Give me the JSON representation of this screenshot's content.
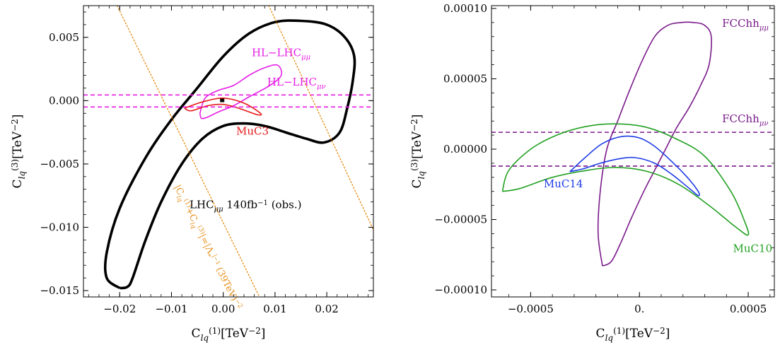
{
  "chart_data": [
    {
      "type": "line",
      "panel": "left",
      "xlabel": {
        "base": "C",
        "sub": "lq",
        "sup": "(1)",
        "unit": "[TeV",
        "unit_sup": "−2",
        "unit_end": "]"
      },
      "ylabel": {
        "base": "C",
        "sub": "lq",
        "sup": "(3)",
        "unit": "[TeV",
        "unit_sup": "−2",
        "unit_end": "]"
      },
      "xlim": [
        -0.027,
        0.029
      ],
      "ylim": [
        -0.0155,
        0.0075
      ],
      "xticks": [
        -0.02,
        -0.01,
        0.0,
        0.01,
        0.02
      ],
      "xtick_labels": [
        "−0.02",
        "−0.01",
        "0.00",
        "0.01",
        "0.02"
      ],
      "yticks": [
        0.005,
        0.0,
        -0.005,
        -0.01,
        -0.015
      ],
      "ytick_labels": [
        "0.005",
        "0.000",
        "−0.005",
        "−0.010",
        "−0.015"
      ],
      "grid": false,
      "series": [
        {
          "name": "LHC μμ 140fb⁻¹ (obs.)",
          "color": "#000000",
          "style": "solid-thick",
          "points": [
            [
              -0.02,
              -0.0148
            ],
            [
              -0.0225,
              -0.014
            ],
            [
              -0.0225,
              -0.012
            ],
            [
              -0.02,
              -0.0085
            ],
            [
              -0.015,
              -0.0045
            ],
            [
              -0.01,
              -0.0015
            ],
            [
              -0.005,
              0.001
            ],
            [
              0.0,
              0.0035
            ],
            [
              0.005,
              0.0053
            ],
            [
              0.01,
              0.0062
            ],
            [
              0.015,
              0.0063
            ],
            [
              0.02,
              0.006
            ],
            [
              0.0235,
              0.005
            ],
            [
              0.0253,
              0.0035
            ],
            [
              0.025,
              0.0015
            ],
            [
              0.024,
              -0.0005
            ],
            [
              0.0225,
              -0.0025
            ],
            [
              0.0195,
              -0.0033
            ],
            [
              0.016,
              -0.003
            ],
            [
              0.012,
              -0.0025
            ],
            [
              0.008,
              -0.002
            ],
            [
              0.004,
              -0.0018
            ],
            [
              0.0,
              -0.002
            ],
            [
              -0.004,
              -0.003
            ],
            [
              -0.008,
              -0.005
            ],
            [
              -0.012,
              -0.008
            ],
            [
              -0.015,
              -0.011
            ],
            [
              -0.0175,
              -0.014
            ],
            [
              -0.0185,
              -0.0147
            ],
            [
              -0.02,
              -0.0148
            ]
          ],
          "label": {
            "text": "LHC",
            "sub": "μμ",
            "tail": " 140fb",
            "tail_sup": "−1",
            "end": " (obs.)",
            "x": -0.0065,
            "y": -0.0085,
            "color": "#000000"
          }
        },
        {
          "name": "HL-LHC μμ",
          "color": "#e61ee6",
          "style": "solid",
          "points": [
            [
              -0.0045,
              -0.001
            ],
            [
              -0.0035,
              0.0002
            ],
            [
              -0.001,
              0.0008
            ],
            [
              0.002,
              0.0012
            ],
            [
              0.005,
              0.002
            ],
            [
              0.008,
              0.0026
            ],
            [
              0.0105,
              0.0028
            ],
            [
              0.0112,
              0.002
            ],
            [
              0.009,
              0.0012
            ],
            [
              0.005,
              0.0003
            ],
            [
              0.002,
              -0.0004
            ],
            [
              -0.001,
              -0.0009
            ],
            [
              -0.003,
              -0.0013
            ],
            [
              -0.0042,
              -0.0014
            ],
            [
              -0.0045,
              -0.001
            ]
          ],
          "label": {
            "text": "HL−LHC",
            "sub": "μμ",
            "x": 0.0055,
            "y": 0.0035,
            "color": "#e61ee6"
          }
        },
        {
          "name": "MuC3",
          "color": "#e61a1a",
          "style": "solid",
          "points": [
            [
              -0.0075,
              -0.0006
            ],
            [
              -0.004,
              -0.0001
            ],
            [
              0.0,
              0.0002
            ],
            [
              0.004,
              -0.0002
            ],
            [
              0.0072,
              -0.001
            ],
            [
              0.0065,
              -0.0011
            ],
            [
              0.003,
              -0.0006
            ],
            [
              0.0,
              -0.0003
            ],
            [
              -0.003,
              -0.0004
            ],
            [
              -0.0062,
              -0.0008
            ],
            [
              -0.0075,
              -0.0006
            ]
          ],
          "label": {
            "text": "MuC3",
            "x": 0.0025,
            "y": -0.0027,
            "color": "#e61a1a"
          }
        },
        {
          "name": "HL-LHC μν",
          "color": "#e61ee6",
          "style": "dashed",
          "hlines": [
            0.00045,
            -0.0005
          ],
          "label": {
            "text": "HL−LHC",
            "sub": "μν",
            "x": 0.0085,
            "y": 0.0012,
            "color": "#e61ee6"
          }
        },
        {
          "name": "orange-dotted-bound",
          "color": "#e8901c",
          "style": "dotted",
          "lines": [
            [
              [
                -0.0205,
                0.0075
              ],
              [
                0.007,
                -0.0155
              ]
            ],
            [
              [
                0.0088,
                0.0075
              ],
              [
                0.029,
                -0.0102
              ]
            ]
          ],
          "label": {
            "text": "|C",
            "sub": "lq",
            "sup": "(1)",
            "tail": "+C",
            "tail_sub": "lq",
            "tail_sup": "(3)",
            "end": "|=|Λ",
            "end_sub": "*",
            "end_sup": "|",
            "end2": "⁻¹ (39TeV)",
            "end2_sup": "−2",
            "x": -0.0095,
            "y": -0.0068,
            "color": "#e8901c",
            "rotate": 63
          }
        }
      ],
      "extra_marks": [
        {
          "name": "center-point",
          "x": -0.0002,
          "y": 2e-05,
          "color": "#000000"
        }
      ]
    },
    {
      "type": "line",
      "panel": "right",
      "xlabel": {
        "base": "C",
        "sub": "lq",
        "sup": "(1)",
        "unit": "[TeV",
        "unit_sup": "−2",
        "unit_end": "]"
      },
      "ylabel": {
        "base": "C",
        "sub": "lq",
        "sup": "(3)",
        "unit": "[TeV",
        "unit_sup": "−2",
        "unit_end": "]"
      },
      "xlim": [
        -0.00068,
        0.00062
      ],
      "ylim": [
        -0.000105,
        0.000102
      ],
      "xticks": [
        -0.0005,
        0.0,
        0.0005
      ],
      "xtick_labels": [
        "−0.0005",
        "0.",
        "0.0005"
      ],
      "yticks": [
        0.0001,
        5e-05,
        0.0,
        -5e-05,
        -0.0001
      ],
      "ytick_labels": [
        "0.00010",
        "0.00005",
        "0.00000",
        "−0.00005",
        "−0.00010"
      ],
      "grid": false,
      "series": [
        {
          "name": "FCChh μμ",
          "color": "#7a1a8a",
          "style": "solid",
          "points": [
            [
              -0.00017,
              -8.3e-05
            ],
            [
              -0.00019,
              -6e-05
            ],
            [
              -0.00018,
              -3e-05
            ],
            [
              -0.00015,
              0.0
            ],
            [
              -0.0001,
              2e-05
            ],
            [
              -5e-05,
              4e-05
            ],
            [
              1e-05,
              6.2e-05
            ],
            [
              7e-05,
              8e-05
            ],
            [
              0.00013,
              8.8e-05
            ],
            [
              0.00019,
              9e-05
            ],
            [
              0.00025,
              9e-05
            ],
            [
              0.0003,
              8.8e-05
            ],
            [
              0.00033,
              8e-05
            ],
            [
              0.00032,
              6e-05
            ],
            [
              0.00028,
              4.5e-05
            ],
            [
              0.00023,
              3e-05
            ],
            [
              0.00017,
              1.5e-05
            ],
            [
              0.00012,
              0.0
            ],
            [
              7e-05,
              -1.5e-05
            ],
            [
              2e-05,
              -3e-05
            ],
            [
              -4e-05,
              -5e-05
            ],
            [
              -9e-05,
              -6.8e-05
            ],
            [
              -0.00013,
              -8e-05
            ],
            [
              -0.00017,
              -8.3e-05
            ]
          ],
          "label": {
            "text": "FCChh",
            "sub": "μμ",
            "x": 0.00038,
            "y": 8.7e-05,
            "color": "#7a1a8a"
          }
        },
        {
          "name": "FCChh μν",
          "color": "#7a1a8a",
          "style": "dashed",
          "hlines": [
            1.2e-05,
            -1.2e-05
          ],
          "label": {
            "text": "FCChh",
            "sub": "μν",
            "x": 0.00038,
            "y": 1.9e-05,
            "color": "#7a1a8a"
          }
        },
        {
          "name": "MuC14",
          "color": "#1f3ce6",
          "style": "solid",
          "points": [
            [
              -0.00032,
              -1.6e-05
            ],
            [
              -0.00025,
              -6e-06
            ],
            [
              -0.00017,
              4e-06
            ],
            [
              -8e-05,
              9e-06
            ],
            [
              0.0,
              8e-06
            ],
            [
              7e-05,
              2e-06
            ],
            [
              0.00015,
              -9e-06
            ],
            [
              0.00022,
              -2e-05
            ],
            [
              0.00027,
              -3e-05
            ],
            [
              0.00027,
              -3.3e-05
            ],
            [
              0.00023,
              -2.8e-05
            ],
            [
              0.00015,
              -1.8e-05
            ],
            [
              7e-05,
              -1e-05
            ],
            [
              -2e-05,
              -6e-06
            ],
            [
              -0.0001,
              -7e-06
            ],
            [
              -0.00018,
              -1e-05
            ],
            [
              -0.00026,
              -1.4e-05
            ],
            [
              -0.00032,
              -1.6e-05
            ]
          ],
          "label": {
            "text": "MuC14",
            "x": -0.00044,
            "y": -2.7e-05,
            "color": "#1f3ce6"
          }
        },
        {
          "name": "MuC10",
          "color": "#22a022",
          "style": "solid",
          "points": [
            [
              -0.00063,
              -3e-05
            ],
            [
              -0.0006,
              -1.5e-05
            ],
            [
              -0.0005,
              0.0
            ],
            [
              -0.00038,
              1e-05
            ],
            [
              -0.00025,
              1.6e-05
            ],
            [
              -0.00012,
              1.8e-05
            ],
            [
              2e-05,
              1.6e-05
            ],
            [
              0.00016,
              8e-06
            ],
            [
              0.0003,
              -5e-06
            ],
            [
              0.00042,
              -3e-05
            ],
            [
              0.00048,
              -5e-05
            ],
            [
              0.0005,
              -6.1e-05
            ],
            [
              0.00044,
              -5.5e-05
            ],
            [
              0.00032,
              -4e-05
            ],
            [
              0.00018,
              -2.5e-05
            ],
            [
              4e-05,
              -1.6e-05
            ],
            [
              -0.0001,
              -1.3e-05
            ],
            [
              -0.00024,
              -1.5e-05
            ],
            [
              -0.0004,
              -2e-05
            ],
            [
              -0.00055,
              -2.8e-05
            ],
            [
              -0.00063,
              -3e-05
            ]
          ],
          "label": {
            "text": "MuC10",
            "x": 0.00043,
            "y": -7.3e-05,
            "color": "#22a022"
          }
        }
      ],
      "extra_marks": []
    }
  ]
}
